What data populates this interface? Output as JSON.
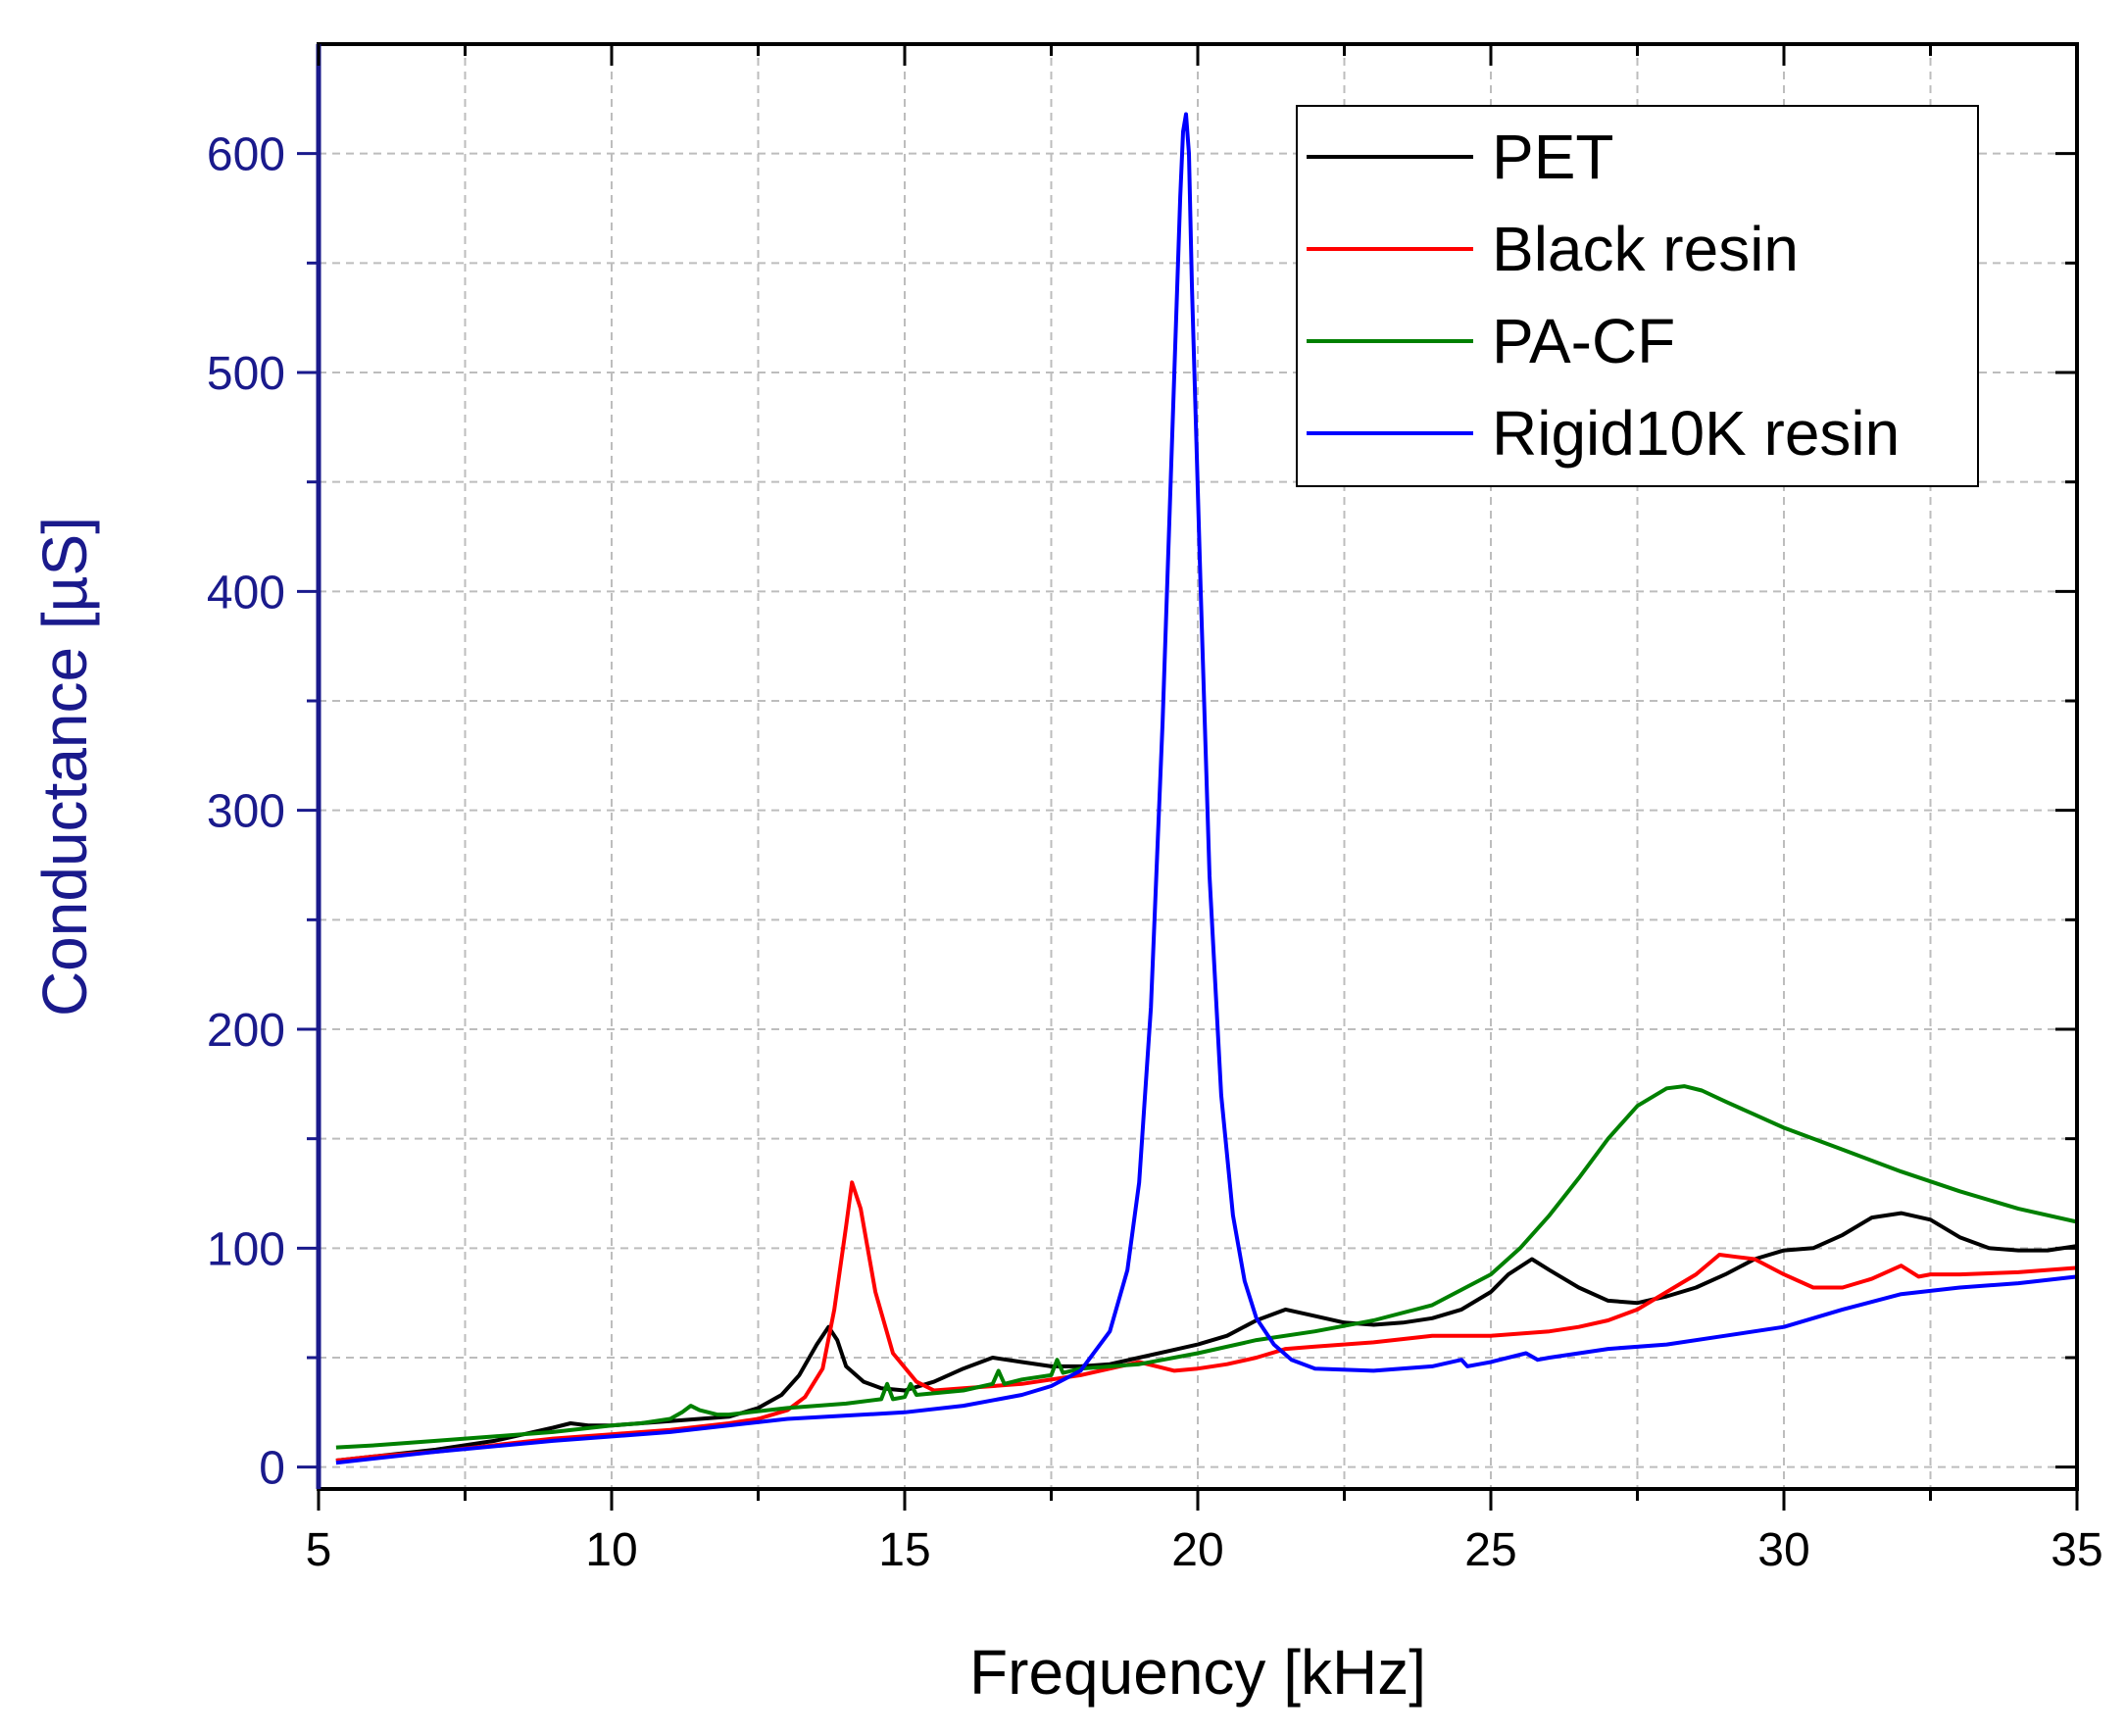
{
  "chart_data": {
    "type": "line",
    "title": "",
    "xlabel": "Frequency [kHz]",
    "ylabel": "Conductance [µS]",
    "xlim": [
      5,
      35
    ],
    "ylim": [
      -10,
      650
    ],
    "xticks": [
      5,
      10,
      15,
      20,
      25,
      30,
      35
    ],
    "yticks": [
      0,
      100,
      200,
      300,
      400,
      500,
      600
    ],
    "grid": true,
    "legend_position": "top-right",
    "colors": {
      "axis_y": "#1a1a8c",
      "axis_x": "#000000",
      "grid": "#bdbdbd"
    },
    "series": [
      {
        "name": "PET",
        "color": "#000000",
        "x": [
          5.3,
          6,
          7,
          8,
          8.5,
          9,
          9.3,
          9.6,
          10,
          11,
          12,
          12.5,
          12.9,
          13.2,
          13.5,
          13.7,
          13.85,
          14,
          14.3,
          14.6,
          15,
          15.5,
          16,
          16.5,
          17,
          17.5,
          18,
          18.5,
          19,
          19.5,
          20,
          20.5,
          21,
          21.5,
          22,
          22.5,
          23,
          23.5,
          24,
          24.5,
          25,
          25.3,
          25.7,
          26,
          26.5,
          27,
          27.5,
          28,
          28.5,
          29,
          29.5,
          30,
          30.5,
          31,
          31.5,
          32,
          32.5,
          33,
          33.5,
          34,
          34.5,
          35
        ],
        "y": [
          3,
          5,
          8,
          12,
          15,
          18,
          20,
          19,
          19,
          21,
          23,
          27,
          33,
          42,
          56,
          64,
          58,
          46,
          39,
          36,
          35,
          39,
          45,
          50,
          48,
          46,
          46,
          47,
          50,
          53,
          56,
          60,
          67,
          72,
          69,
          66,
          65,
          66,
          68,
          72,
          80,
          88,
          95,
          90,
          82,
          76,
          75,
          78,
          82,
          88,
          95,
          99,
          100,
          106,
          114,
          116,
          113,
          105,
          100,
          99,
          99,
          101
        ]
      },
      {
        "name": "Black resin",
        "color": "#ff0000",
        "x": [
          5.3,
          6,
          7,
          8,
          9,
          10,
          11,
          12,
          12.5,
          13,
          13.3,
          13.6,
          13.8,
          14,
          14.1,
          14.25,
          14.5,
          14.8,
          15.2,
          15.5,
          16,
          17,
          18,
          19,
          19.3,
          19.6,
          20,
          20.5,
          21,
          21.5,
          22,
          23,
          24,
          25,
          26,
          26.5,
          27,
          27.5,
          28,
          28.5,
          28.9,
          29.2,
          29.5,
          30,
          30.5,
          31,
          31.5,
          32,
          32.3,
          32.5,
          33,
          34,
          35
        ],
        "y": [
          3,
          5,
          7,
          10,
          13,
          15,
          17,
          20,
          22,
          26,
          32,
          45,
          72,
          110,
          130,
          118,
          80,
          52,
          39,
          35,
          36,
          38,
          42,
          48,
          46,
          44,
          45,
          47,
          50,
          54,
          55,
          57,
          60,
          60,
          62,
          64,
          67,
          72,
          80,
          88,
          97,
          96,
          95,
          88,
          82,
          82,
          86,
          92,
          87,
          88,
          88,
          89,
          91
        ]
      },
      {
        "name": "PA-CF",
        "color": "#008000",
        "x": [
          5.3,
          6,
          7,
          8,
          9,
          10,
          10.5,
          11,
          11.2,
          11.35,
          11.5,
          11.8,
          12,
          13,
          14,
          14.6,
          14.7,
          14.8,
          15,
          15.1,
          15.2,
          16,
          16.5,
          16.6,
          16.7,
          17,
          17.5,
          17.6,
          17.7,
          18,
          19,
          20,
          21,
          22,
          23,
          24,
          25,
          25.5,
          26,
          26.5,
          27,
          27.5,
          28,
          28.3,
          28.6,
          29,
          29.5,
          30,
          31,
          32,
          33,
          34,
          35
        ],
        "y": [
          9,
          10,
          12,
          14,
          16,
          19,
          20,
          22,
          25,
          28,
          26,
          24,
          24,
          27,
          29,
          31,
          38,
          31,
          32,
          38,
          33,
          35,
          38,
          44,
          38,
          40,
          42,
          49,
          43,
          45,
          47,
          52,
          58,
          62,
          67,
          74,
          88,
          100,
          115,
          132,
          150,
          165,
          173,
          174,
          172,
          167,
          161,
          155,
          145,
          135,
          126,
          118,
          112
        ]
      },
      {
        "name": "Rigid10K resin",
        "color": "#0000ff",
        "x": [
          5.3,
          7,
          9,
          11,
          13,
          15,
          16,
          17,
          17.5,
          18,
          18.5,
          18.8,
          19,
          19.2,
          19.4,
          19.55,
          19.7,
          19.75,
          19.8,
          19.85,
          19.9,
          20.05,
          20.2,
          20.4,
          20.6,
          20.8,
          21,
          21.3,
          21.6,
          22,
          23,
          24,
          24.5,
          24.6,
          24.8,
          25,
          25.6,
          25.8,
          26,
          27,
          28,
          29,
          30,
          31,
          32,
          33,
          34,
          35
        ],
        "y": [
          2,
          7,
          12,
          16,
          22,
          25,
          28,
          33,
          37,
          44,
          62,
          90,
          130,
          210,
          340,
          460,
          580,
          610,
          618,
          600,
          540,
          400,
          270,
          170,
          115,
          85,
          68,
          56,
          49,
          45,
          44,
          46,
          49,
          46,
          47,
          48,
          52,
          49,
          50,
          54,
          56,
          60,
          64,
          72,
          79,
          82,
          84,
          87
        ]
      }
    ]
  }
}
